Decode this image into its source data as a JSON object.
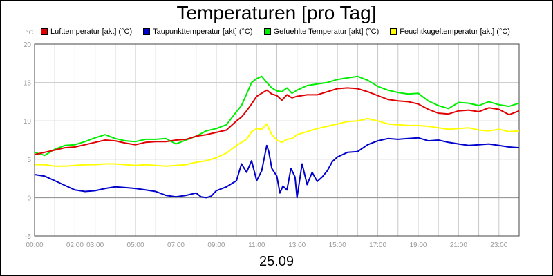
{
  "chart_data": {
    "type": "line",
    "title": "Temperaturen [pro Tag]",
    "unit_label": "°C",
    "date_label": "25.09",
    "grid": true,
    "legend_position": "top",
    "ylim": [
      -5,
      20
    ],
    "yticks": [
      -5,
      0,
      5,
      10,
      15,
      20
    ],
    "xlim": [
      0,
      24
    ],
    "xticks": [
      {
        "x": 0,
        "label": "00:00"
      },
      {
        "x": 2,
        "label": "02:00"
      },
      {
        "x": 3,
        "label": "03:00"
      },
      {
        "x": 5,
        "label": "05:00"
      },
      {
        "x": 7,
        "label": "07:00"
      },
      {
        "x": 9,
        "label": "09:00"
      },
      {
        "x": 11,
        "label": "11:00"
      },
      {
        "x": 13,
        "label": "13:00"
      },
      {
        "x": 15,
        "label": "15:00"
      },
      {
        "x": 17,
        "label": "17:00"
      },
      {
        "x": 19,
        "label": "19:00"
      },
      {
        "x": 21,
        "label": "21:00"
      },
      {
        "x": 23,
        "label": "23:00"
      }
    ],
    "series": [
      {
        "name": "Lufttemperatur [akt] (°C)",
        "color": "#e00000",
        "x": [
          0,
          0.5,
          1,
          1.5,
          2,
          2.5,
          3,
          3.5,
          4,
          4.5,
          5,
          5.5,
          6,
          6.5,
          7,
          7.5,
          8,
          8.5,
          9,
          9.5,
          10,
          10.25,
          10.5,
          10.75,
          11,
          11.25,
          11.5,
          11.75,
          12,
          12.25,
          12.5,
          12.75,
          13,
          13.5,
          14,
          14.5,
          15,
          15.5,
          16,
          16.5,
          17,
          17.5,
          18,
          18.5,
          19,
          19.5,
          20,
          20.5,
          21,
          21.5,
          22,
          22.5,
          23,
          23.5,
          24
        ],
        "y": [
          5.6,
          5.9,
          6.2,
          6.5,
          6.6,
          6.9,
          7.2,
          7.5,
          7.4,
          7.1,
          6.9,
          7.2,
          7.3,
          7.3,
          7.5,
          7.6,
          8.0,
          8.2,
          8.5,
          8.8,
          10.0,
          10.5,
          11.3,
          12.2,
          13.2,
          13.6,
          14.0,
          13.5,
          13.3,
          12.7,
          13.4,
          13.0,
          13.2,
          13.4,
          13.4,
          13.8,
          14.2,
          14.3,
          14.2,
          13.8,
          13.3,
          12.8,
          12.6,
          12.5,
          12.2,
          11.5,
          11.0,
          10.9,
          11.3,
          11.4,
          11.2,
          11.7,
          11.5,
          10.8,
          11.3
        ]
      },
      {
        "name": "Taupunkttemperatur [akt] (°C)",
        "color": "#0000cc",
        "x": [
          0,
          0.5,
          1,
          1.5,
          2,
          2.5,
          3,
          3.5,
          4,
          4.5,
          5,
          5.5,
          6,
          6.5,
          7,
          7.5,
          8,
          8.25,
          8.5,
          8.75,
          9,
          9.5,
          10,
          10.25,
          10.5,
          10.75,
          11,
          11.25,
          11.5,
          11.6,
          11.75,
          12,
          12.15,
          12.3,
          12.5,
          12.7,
          12.9,
          13,
          13.25,
          13.5,
          13.75,
          14,
          14.25,
          14.5,
          14.75,
          15,
          15.5,
          16,
          16.5,
          17,
          17.5,
          18,
          18.5,
          19,
          19.5,
          20,
          20.5,
          21,
          21.5,
          22,
          22.5,
          23,
          23.5,
          24
        ],
        "y": [
          3.0,
          2.8,
          2.2,
          1.6,
          1.0,
          0.8,
          0.9,
          1.2,
          1.4,
          1.3,
          1.2,
          1.0,
          0.8,
          0.3,
          0.1,
          0.3,
          0.6,
          0.1,
          0.0,
          0.2,
          0.9,
          1.4,
          2.2,
          4.4,
          3.3,
          4.8,
          2.2,
          3.5,
          6.8,
          6.0,
          3.8,
          2.8,
          0.6,
          1.5,
          1.0,
          3.8,
          2.7,
          0.0,
          4.4,
          1.7,
          3.3,
          2.1,
          2.7,
          3.5,
          4.7,
          5.3,
          5.9,
          6.0,
          6.9,
          7.4,
          7.7,
          7.6,
          7.7,
          7.8,
          7.4,
          7.5,
          7.2,
          7.0,
          6.8,
          6.9,
          7.0,
          6.8,
          6.6,
          6.5
        ]
      },
      {
        "name": "Gefuehlte Temperatur [akt] (°C)",
        "color": "#00ee00",
        "x": [
          0,
          0.5,
          1,
          1.5,
          2,
          2.5,
          3,
          3.5,
          4,
          4.5,
          5,
          5.5,
          6,
          6.5,
          7,
          7.5,
          8,
          8.5,
          9,
          9.5,
          10,
          10.25,
          10.5,
          10.75,
          11,
          11.25,
          11.5,
          11.75,
          12,
          12.25,
          12.5,
          12.75,
          13,
          13.5,
          14,
          14.5,
          15,
          15.5,
          16,
          16.5,
          17,
          17.5,
          18,
          18.5,
          19,
          19.5,
          20,
          20.5,
          21,
          21.5,
          22,
          22.5,
          23,
          23.5,
          24
        ],
        "y": [
          5.9,
          5.5,
          6.3,
          6.8,
          6.9,
          7.3,
          7.8,
          8.2,
          7.7,
          7.4,
          7.3,
          7.6,
          7.6,
          7.7,
          7.0,
          7.5,
          8.0,
          8.7,
          9.0,
          9.5,
          11.2,
          12.0,
          13.5,
          15.0,
          15.5,
          15.8,
          15.0,
          14.3,
          13.9,
          13.8,
          14.3,
          13.6,
          14.0,
          14.6,
          14.8,
          15.0,
          15.4,
          15.6,
          15.8,
          15.3,
          14.5,
          14.0,
          13.7,
          13.5,
          13.6,
          12.6,
          12.0,
          11.6,
          12.4,
          12.3,
          12.0,
          12.5,
          12.1,
          11.9,
          12.3
        ]
      },
      {
        "name": "Feuchtkugeltemperatur [akt] (°C)",
        "color": "#ffff00",
        "x": [
          0,
          0.5,
          1,
          1.5,
          2,
          2.5,
          3,
          3.5,
          4,
          4.5,
          5,
          5.5,
          6,
          6.5,
          7,
          7.5,
          8,
          8.5,
          9,
          9.5,
          10,
          10.5,
          10.75,
          11,
          11.25,
          11.5,
          11.75,
          12,
          12.25,
          12.5,
          12.75,
          13,
          13.5,
          14,
          14.5,
          15,
          15.5,
          16,
          16.5,
          17,
          17.5,
          18,
          18.5,
          19,
          19.5,
          20,
          20.5,
          21,
          21.5,
          22,
          22.5,
          23,
          23.5,
          24
        ],
        "y": [
          4.3,
          4.3,
          4.1,
          4.1,
          4.2,
          4.3,
          4.3,
          4.4,
          4.4,
          4.3,
          4.2,
          4.3,
          4.2,
          4.1,
          4.2,
          4.3,
          4.6,
          4.8,
          5.2,
          5.8,
          6.8,
          7.6,
          8.6,
          9.0,
          8.9,
          9.6,
          8.2,
          7.5,
          7.2,
          7.6,
          7.7,
          8.2,
          8.6,
          9.0,
          9.3,
          9.6,
          9.9,
          10.0,
          10.3,
          10.0,
          9.6,
          9.5,
          9.4,
          9.4,
          9.3,
          9.1,
          8.9,
          9.0,
          9.1,
          8.8,
          8.7,
          8.9,
          8.6,
          8.7
        ]
      }
    ]
  }
}
